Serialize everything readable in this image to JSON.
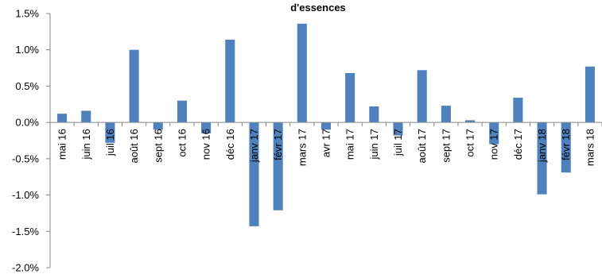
{
  "chart_data": {
    "type": "bar",
    "title": "d'essences",
    "xlabel": "",
    "ylabel": "",
    "ylim": [
      -0.02,
      0.015
    ],
    "ytick_values": [
      0.015,
      0.01,
      0.005,
      0,
      -0.005,
      -0.01,
      -0.015,
      -0.02
    ],
    "ytick_labels": [
      "1.5%",
      "1.0%",
      "0.5%",
      "0.0%",
      "-0.5%",
      "-1.0%",
      "-1.5%",
      "-2.0%"
    ],
    "grid": false,
    "legend": "none",
    "bar_color": "#4f81bd",
    "categories": [
      "mai 16",
      "juin 16",
      "juil 16",
      "août 16",
      "sept 16",
      "oct 16",
      "nov 16",
      "déc 16",
      "janv 17",
      "févr 17",
      "mars 17",
      "avr 17",
      "mai 17",
      "juin 17",
      "juil 17",
      "août 17",
      "sept 17",
      "oct 17",
      "nov 17",
      "déc 17",
      "janv 18",
      "févr 18",
      "mars 18"
    ],
    "values": [
      0.0012,
      0.0016,
      -0.0028,
      0.01,
      -0.001,
      0.003,
      -0.0015,
      0.0114,
      -0.0143,
      -0.0121,
      0.0136,
      -0.001,
      0.0068,
      0.0022,
      -0.0018,
      0.0072,
      0.0023,
      0.0003,
      -0.003,
      0.0034,
      -0.0099,
      -0.0069,
      0.0077
    ]
  }
}
